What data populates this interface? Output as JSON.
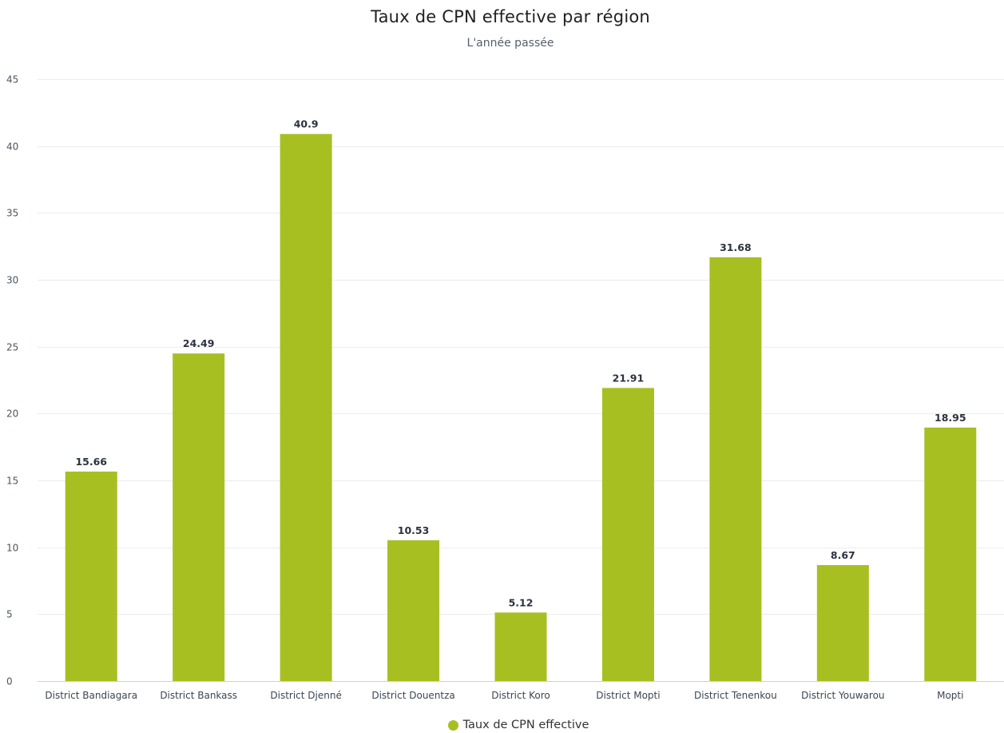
{
  "chart_data": {
    "type": "bar",
    "title": "Taux de CPN effective par région",
    "subtitle": "L'année passée",
    "categories": [
      "District Bandiagara",
      "District Bankass",
      "District Djenné",
      "District Douentza",
      "District Koro",
      "District Mopti",
      "District Tenenkou",
      "District Youwarou",
      "Mopti"
    ],
    "series": [
      {
        "name": "Taux de CPN effective",
        "values": [
          15.66,
          24.49,
          40.9,
          10.53,
          5.12,
          21.91,
          31.68,
          8.67,
          18.95
        ],
        "color": "#a8bf22"
      }
    ],
    "data_labels": [
      "15.66",
      "24.49",
      "40.9",
      "10.53",
      "5.12",
      "21.91",
      "31.68",
      "8.67",
      "18.95"
    ],
    "ylim": [
      0,
      45
    ],
    "yticks": [
      0,
      5,
      10,
      15,
      20,
      25,
      30,
      35,
      40,
      45
    ],
    "xlabel": "",
    "ylabel": "",
    "grid": true,
    "legend_position": "bottom-center"
  }
}
